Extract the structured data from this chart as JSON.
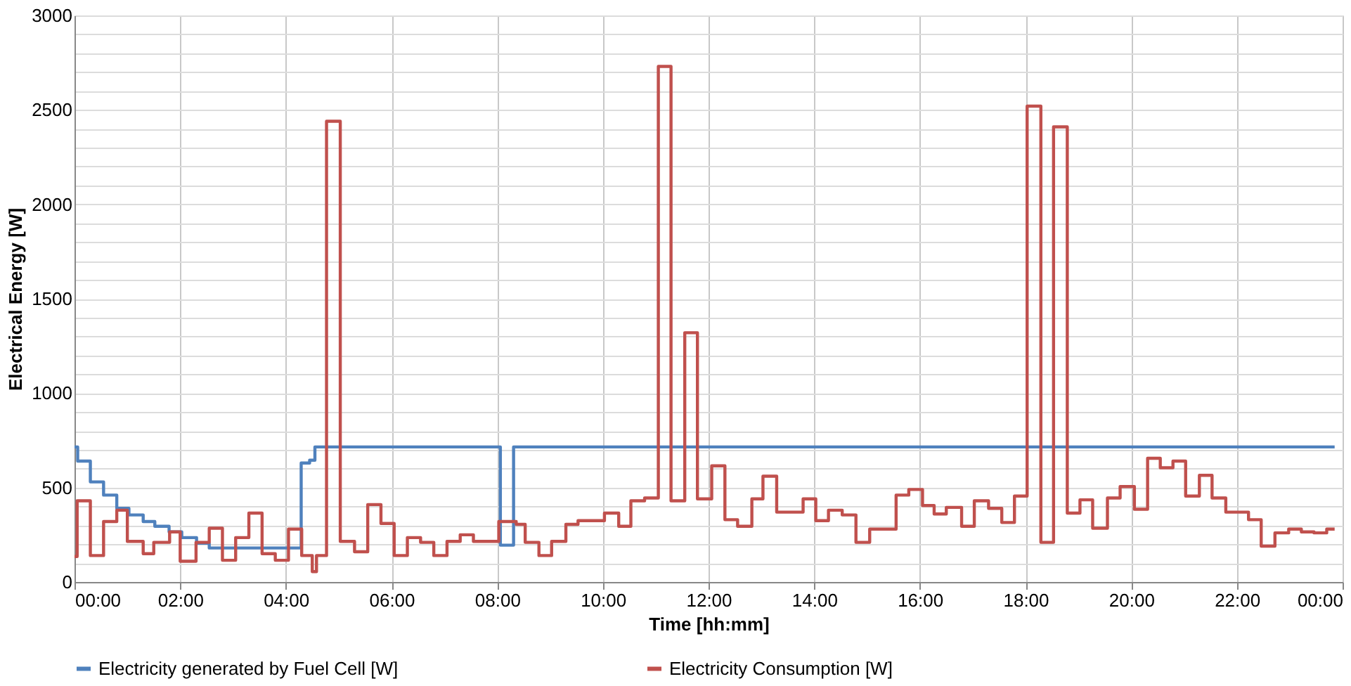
{
  "chart_data": {
    "type": "step",
    "xlabel": "Time [hh:mm]",
    "ylabel": "Electrical Energy [W]",
    "xlim": [
      0,
      24
    ],
    "xticks": [
      {
        "value": 0,
        "label": "00:00"
      },
      {
        "value": 2,
        "label": "02:00"
      },
      {
        "value": 4,
        "label": "04:00"
      },
      {
        "value": 6,
        "label": "06:00"
      },
      {
        "value": 8,
        "label": "08:00"
      },
      {
        "value": 10,
        "label": "10:00"
      },
      {
        "value": 12,
        "label": "12:00"
      },
      {
        "value": 14,
        "label": "14:00"
      },
      {
        "value": 16,
        "label": "16:00"
      },
      {
        "value": 18,
        "label": "18:00"
      },
      {
        "value": 20,
        "label": "20:00"
      },
      {
        "value": 22,
        "label": "22:00"
      },
      {
        "value": 24,
        "label": "00:00"
      }
    ],
    "ylim": [
      0,
      3000
    ],
    "yticks": [
      0,
      {
        "value": 100,
        "label": null
      },
      {
        "value": 200,
        "label": null
      },
      {
        "value": 300,
        "label": null
      },
      {
        "value": 400,
        "label": null
      },
      500,
      {
        "value": 600,
        "label": null
      },
      {
        "value": 700,
        "label": null
      },
      {
        "value": 800,
        "label": null
      },
      {
        "value": 900,
        "label": null
      },
      1000,
      {
        "value": 1100,
        "label": null
      },
      {
        "value": 1200,
        "label": null
      },
      {
        "value": 1300,
        "label": null
      },
      {
        "value": 1400,
        "label": null
      },
      1500,
      {
        "value": 1600,
        "label": null
      },
      {
        "value": 1700,
        "label": null
      },
      {
        "value": 1800,
        "label": null
      },
      {
        "value": 1900,
        "label": null
      },
      2000,
      {
        "value": 2100,
        "label": null
      },
      {
        "value": 2200,
        "label": null
      },
      {
        "value": 2300,
        "label": null
      },
      {
        "value": 2400,
        "label": null
      },
      2500,
      {
        "value": 2600,
        "label": null
      },
      {
        "value": 2700,
        "label": null
      },
      {
        "value": 2800,
        "label": null
      },
      {
        "value": 2900,
        "label": null
      },
      3000
    ],
    "grid": true,
    "legend": "bottom",
    "series": [
      {
        "name": "Electricity generated by Fuel Cell [W]",
        "color": "#4f81bd",
        "x": [
          0,
          0.06,
          0.3,
          0.55,
          0.8,
          1.03,
          1.3,
          1.52,
          1.79,
          2.03,
          2.31,
          2.55,
          4.29,
          4.45,
          4.55,
          8.06,
          8.31,
          23.85
        ],
        "values": [
          715,
          640,
          530,
          460,
          390,
          355,
          320,
          295,
          265,
          235,
          205,
          180,
          630,
          645,
          715,
          195,
          715,
          715
        ]
      },
      {
        "name": "Electricity Consumption [W]",
        "color": "#c0504d",
        "x": [
          0,
          0.05,
          0.3,
          0.55,
          0.8,
          1.0,
          1.3,
          1.5,
          1.8,
          2.0,
          2.3,
          2.55,
          2.8,
          3.05,
          3.3,
          3.55,
          3.8,
          4.05,
          4.3,
          4.5,
          4.58,
          4.77,
          5.03,
          5.3,
          5.55,
          5.8,
          6.05,
          6.3,
          6.55,
          6.8,
          7.05,
          7.3,
          7.55,
          8.03,
          8.36,
          8.53,
          8.79,
          9.03,
          9.3,
          9.53,
          10.03,
          10.3,
          10.53,
          10.79,
          11.05,
          11.29,
          11.55,
          11.79,
          12.06,
          12.31,
          12.55,
          12.82,
          13.03,
          13.29,
          13.79,
          14.03,
          14.27,
          14.53,
          14.79,
          15.05,
          15.55,
          15.79,
          16.05,
          16.27,
          16.5,
          16.79,
          17.03,
          17.3,
          17.55,
          17.79,
          18.03,
          18.29,
          18.53,
          18.79,
          19.03,
          19.27,
          19.55,
          19.79,
          20.06,
          20.31,
          20.55,
          20.79,
          21.03,
          21.29,
          21.53,
          21.79,
          22.22,
          22.46,
          22.72,
          22.98,
          23.22,
          23.46,
          23.7,
          23.85
        ],
        "values": [
          135,
          430,
          140,
          320,
          380,
          215,
          150,
          210,
          265,
          110,
          210,
          285,
          115,
          235,
          365,
          150,
          115,
          280,
          140,
          55,
          140,
          2440,
          215,
          160,
          410,
          310,
          140,
          235,
          210,
          140,
          215,
          250,
          215,
          320,
          305,
          210,
          140,
          215,
          305,
          325,
          365,
          295,
          430,
          445,
          2730,
          430,
          1320,
          440,
          615,
          330,
          295,
          440,
          560,
          370,
          440,
          325,
          380,
          355,
          210,
          280,
          460,
          490,
          405,
          360,
          395,
          295,
          430,
          390,
          315,
          455,
          2520,
          210,
          2410,
          365,
          435,
          285,
          445,
          505,
          385,
          655,
          605,
          640,
          455,
          565,
          445,
          370,
          330,
          190,
          260,
          280,
          265,
          260,
          280,
          280
        ]
      }
    ]
  }
}
